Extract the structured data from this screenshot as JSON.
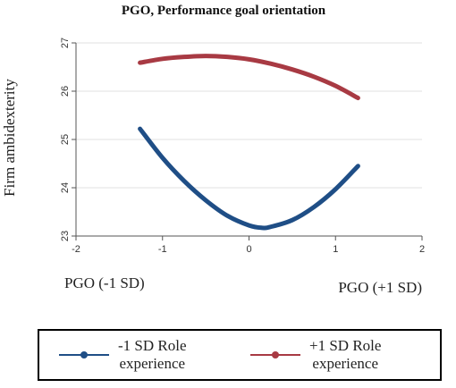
{
  "chart_data": {
    "type": "line",
    "title": "PGO, Performance goal orientation",
    "xlabel": "",
    "ylabel": "Firm ambidexterity",
    "xlim": [
      -2,
      2
    ],
    "ylim": [
      23,
      27
    ],
    "xticks": [
      "-2",
      "-1",
      "0",
      "1",
      "2"
    ],
    "yticks": [
      "23",
      "24",
      "25",
      "26",
      "27"
    ],
    "grid": true,
    "x_annotations": {
      "left": "PGO (-1 SD)",
      "right": "PGO (+1 SD)"
    },
    "series": [
      {
        "name": "-1 SD Role experience",
        "color": "#1f4e86",
        "x": [
          -1.26,
          -1.0,
          -0.75,
          -0.5,
          -0.25,
          0.0,
          0.15,
          0.25,
          0.5,
          0.75,
          1.0,
          1.26
        ],
        "y": [
          25.22,
          24.62,
          24.14,
          23.74,
          23.42,
          23.22,
          23.17,
          23.19,
          23.33,
          23.6,
          23.97,
          24.45
        ]
      },
      {
        "name": "+1 SD Role experience",
        "color": "#a83a43",
        "x": [
          -1.26,
          -1.0,
          -0.75,
          -0.5,
          -0.25,
          0.0,
          0.25,
          0.5,
          0.75,
          1.0,
          1.26
        ],
        "y": [
          26.59,
          26.67,
          26.71,
          26.73,
          26.71,
          26.66,
          26.57,
          26.45,
          26.3,
          26.11,
          25.86
        ]
      }
    ]
  },
  "legend": {
    "items": [
      {
        "label": "-1 SD Role\nexperience",
        "color": "#1f4e86"
      },
      {
        "label": "+1 SD Role\nexperience",
        "color": "#a83a43"
      }
    ]
  }
}
